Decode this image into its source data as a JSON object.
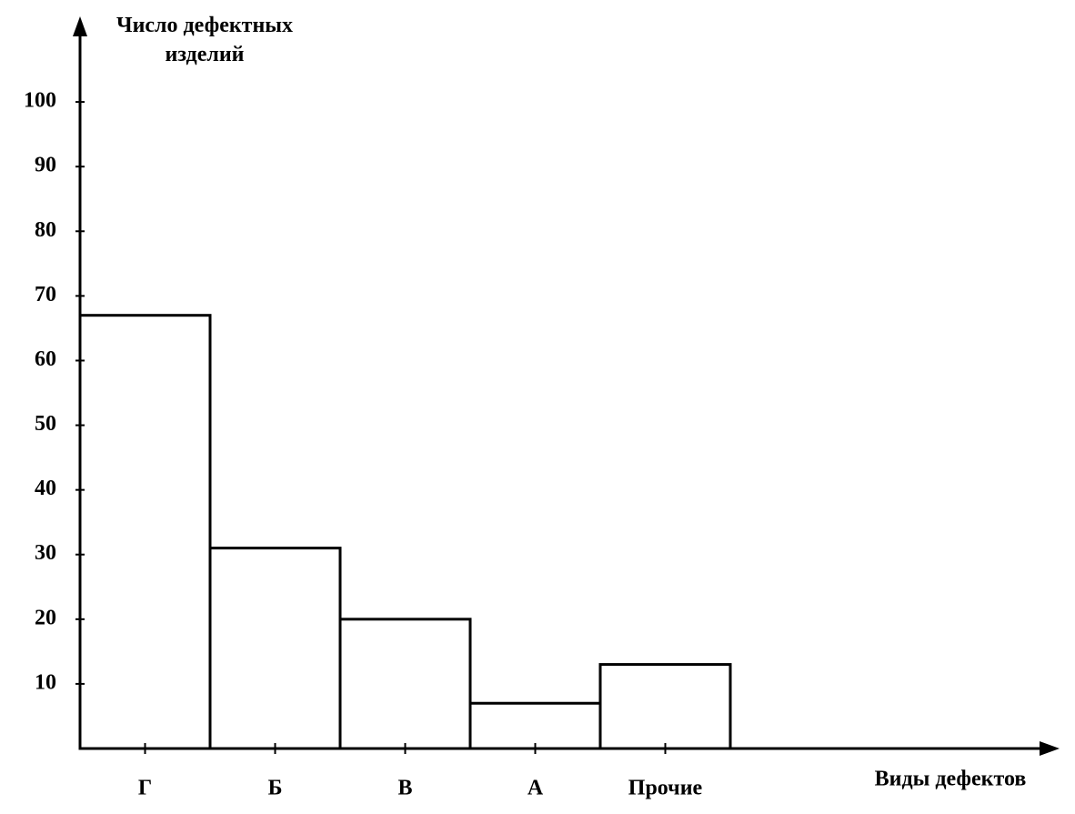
{
  "chart_data": {
    "type": "bar",
    "y_label": "Число дефектных изделий",
    "x_label": "Виды дефектов",
    "categories": [
      "Г",
      "Б",
      "В",
      "А",
      "Прочие"
    ],
    "values": [
      67,
      31,
      20,
      7,
      13
    ],
    "color": "#000000",
    "ylim": [
      0,
      110
    ],
    "yticks": [
      10,
      20,
      30,
      40,
      50,
      60,
      70,
      80,
      90,
      100
    ]
  }
}
